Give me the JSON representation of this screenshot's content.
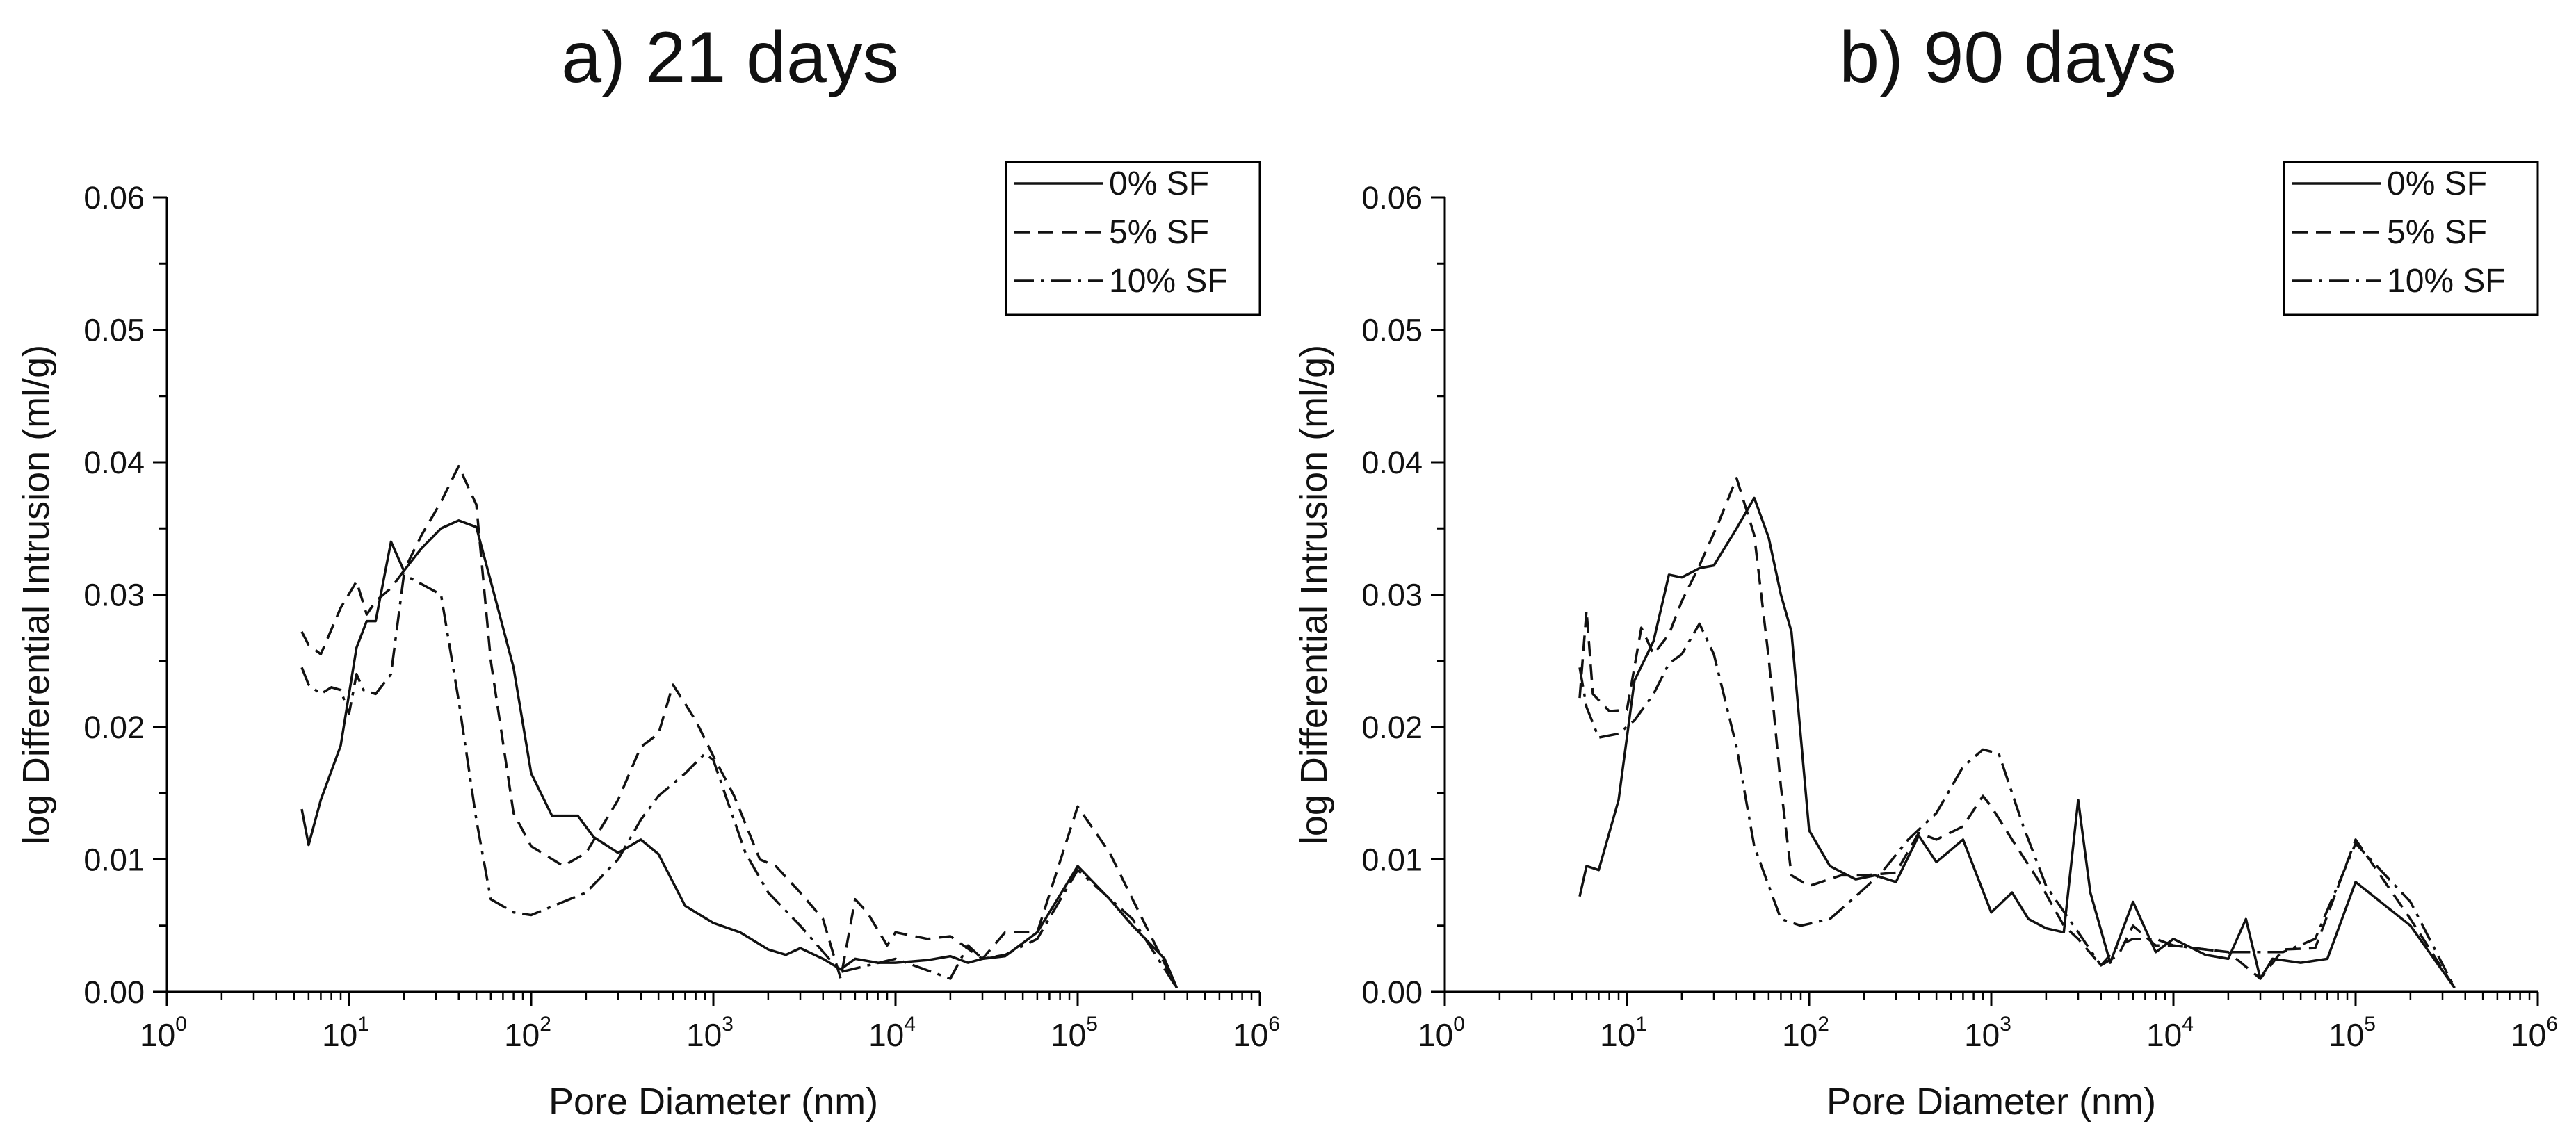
{
  "chart_data": [
    {
      "type": "line",
      "title": "a) 21 days",
      "xlabel": "Pore Diameter (nm)",
      "ylabel": "log Differential Intrusion (ml/g)",
      "xscale": "log",
      "xlim": [
        1,
        1000000
      ],
      "ylim": [
        0,
        0.06
      ],
      "x_ticks": [
        {
          "base": "10",
          "exp": "0"
        },
        {
          "base": "10",
          "exp": "1"
        },
        {
          "base": "10",
          "exp": "2"
        },
        {
          "base": "10",
          "exp": "3"
        },
        {
          "base": "10",
          "exp": "4"
        },
        {
          "base": "10",
          "exp": "5"
        },
        {
          "base": "10",
          "exp": "6"
        }
      ],
      "y_ticks": [
        "0.00",
        "0.01",
        "0.02",
        "0.03",
        "0.04",
        "0.05",
        "0.06"
      ],
      "legend_position": "top-right",
      "series": [
        {
          "name": "0% SF",
          "style": "solid",
          "x": [
            5.5,
            6,
            7,
            9,
            11,
            12.5,
            14,
            17,
            20,
            25,
            32,
            40,
            50,
            60,
            80,
            100,
            130,
            180,
            220,
            300,
            400,
            500,
            700,
            1000,
            1400,
            2000,
            2500,
            3000,
            4000,
            5000,
            6000,
            8000,
            10000,
            15000,
            20000,
            25000,
            30000,
            40000,
            60000,
            100000,
            150000,
            200000,
            300000,
            350000
          ],
          "y": [
            0.0138,
            0.0111,
            0.0145,
            0.0186,
            0.026,
            0.028,
            0.028,
            0.034,
            0.0318,
            0.0335,
            0.035,
            0.0356,
            0.0351,
            0.031,
            0.0245,
            0.0165,
            0.0133,
            0.0133,
            0.0117,
            0.0105,
            0.0115,
            0.0104,
            0.0065,
            0.0052,
            0.0045,
            0.0032,
            0.0028,
            0.0033,
            0.0025,
            0.0017,
            0.0025,
            0.0022,
            0.0022,
            0.0024,
            0.0027,
            0.0022,
            0.0025,
            0.0027,
            0.0045,
            0.0095,
            0.007,
            0.005,
            0.0025,
            0.0003
          ]
        },
        {
          "name": "5% SF",
          "style": "dash",
          "x": [
            5.5,
            6,
            7,
            9,
            11,
            12.5,
            14,
            17,
            20,
            25,
            32,
            40,
            50,
            60,
            80,
            100,
            150,
            200,
            300,
            400,
            500,
            600,
            800,
            1000,
            1300,
            1800,
            2200,
            3000,
            4000,
            5000,
            6000,
            7000,
            9000,
            10000,
            15000,
            20000,
            30000,
            40000,
            60000,
            100000,
            150000,
            200000,
            350000
          ],
          "y": [
            0.0272,
            0.0262,
            0.0255,
            0.029,
            0.031,
            0.0285,
            0.0295,
            0.0305,
            0.0318,
            0.0345,
            0.037,
            0.0397,
            0.0368,
            0.025,
            0.0135,
            0.011,
            0.0095,
            0.0105,
            0.0145,
            0.0185,
            0.0195,
            0.0232,
            0.0205,
            0.0178,
            0.0148,
            0.01,
            0.0095,
            0.0075,
            0.0055,
            0.001,
            0.007,
            0.006,
            0.0035,
            0.0045,
            0.004,
            0.0042,
            0.0025,
            0.0045,
            0.0045,
            0.014,
            0.0105,
            0.007,
            0.0003
          ]
        },
        {
          "name": "10% SF",
          "style": "dashdot",
          "x": [
            5.5,
            6,
            7,
            8,
            9,
            10,
            11,
            12,
            14,
            17,
            20,
            25,
            32,
            40,
            50,
            60,
            80,
            100,
            150,
            200,
            300,
            400,
            500,
            700,
            900,
            1000,
            1500,
            2000,
            3000,
            5000,
            10000,
            20000,
            25000,
            30000,
            40000,
            60000,
            100000,
            200000,
            350000
          ],
          "y": [
            0.0245,
            0.0232,
            0.0225,
            0.023,
            0.0228,
            0.021,
            0.024,
            0.0228,
            0.0225,
            0.024,
            0.0315,
            0.0308,
            0.03,
            0.022,
            0.013,
            0.007,
            0.006,
            0.0058,
            0.0068,
            0.0075,
            0.01,
            0.013,
            0.0148,
            0.0165,
            0.018,
            0.0175,
            0.0105,
            0.0075,
            0.005,
            0.0015,
            0.0025,
            0.001,
            0.0035,
            0.0025,
            0.0028,
            0.004,
            0.0092,
            0.0055,
            0.0003
          ]
        }
      ]
    },
    {
      "type": "line",
      "title": "b) 90 days",
      "xlabel": "Pore Diameter (nm)",
      "ylabel": "log Differential Intrusion (ml/g)",
      "xscale": "log",
      "xlim": [
        1,
        1000000
      ],
      "ylim": [
        0,
        0.06
      ],
      "x_ticks": [
        {
          "base": "10",
          "exp": "0"
        },
        {
          "base": "10",
          "exp": "1"
        },
        {
          "base": "10",
          "exp": "2"
        },
        {
          "base": "10",
          "exp": "3"
        },
        {
          "base": "10",
          "exp": "4"
        },
        {
          "base": "10",
          "exp": "5"
        },
        {
          "base": "10",
          "exp": "6"
        }
      ],
      "y_ticks": [
        "0.00",
        "0.01",
        "0.02",
        "0.03",
        "0.04",
        "0.05",
        "0.06"
      ],
      "legend_position": "top-right",
      "series": [
        {
          "name": "0% SF",
          "style": "solid",
          "x": [
            5.5,
            6,
            7,
            9,
            11,
            14,
            17,
            20,
            25,
            30,
            40,
            50,
            60,
            70,
            80,
            100,
            130,
            180,
            230,
            300,
            400,
            500,
            700,
            1000,
            1300,
            1600,
            2000,
            2500,
            3000,
            3500,
            4500,
            6000,
            8000,
            10000,
            15000,
            20000,
            25000,
            30000,
            35000,
            50000,
            70000,
            100000,
            200000,
            350000
          ],
          "y": [
            0.0072,
            0.0095,
            0.0092,
            0.0145,
            0.0235,
            0.0265,
            0.0315,
            0.0313,
            0.032,
            0.0322,
            0.035,
            0.0373,
            0.0343,
            0.03,
            0.0272,
            0.0122,
            0.0095,
            0.0085,
            0.0088,
            0.0083,
            0.0118,
            0.0098,
            0.0115,
            0.006,
            0.0075,
            0.0055,
            0.0048,
            0.0045,
            0.0145,
            0.0075,
            0.0022,
            0.0068,
            0.003,
            0.004,
            0.0028,
            0.0025,
            0.0055,
            0.001,
            0.0025,
            0.0022,
            0.0025,
            0.0083,
            0.005,
            0.0003
          ]
        },
        {
          "name": "5% SF",
          "style": "dash",
          "x": [
            5.5,
            6,
            6.5,
            8,
            10,
            12,
            14,
            17,
            20,
            25,
            32,
            40,
            50,
            60,
            70,
            80,
            100,
            150,
            200,
            300,
            400,
            500,
            700,
            900,
            1000,
            1300,
            1800,
            2500,
            3000,
            4000,
            5000,
            6000,
            8000,
            10000,
            15000,
            20000,
            30000,
            40000,
            60000,
            100000,
            150000,
            200000,
            350000
          ],
          "y": [
            0.0222,
            0.0288,
            0.0225,
            0.0212,
            0.0213,
            0.0275,
            0.0255,
            0.027,
            0.0295,
            0.0322,
            0.0355,
            0.0388,
            0.0345,
            0.0252,
            0.0155,
            0.0088,
            0.008,
            0.0088,
            0.0088,
            0.009,
            0.012,
            0.0115,
            0.0125,
            0.0148,
            0.014,
            0.0115,
            0.0085,
            0.005,
            0.004,
            0.002,
            0.0028,
            0.005,
            0.0035,
            0.0035,
            0.0032,
            0.003,
            0.001,
            0.0032,
            0.0033,
            0.0115,
            0.008,
            0.0055,
            0.0003
          ]
        },
        {
          "name": "10% SF",
          "style": "dashdot",
          "x": [
            5.5,
            6,
            7,
            9,
            11,
            14,
            17,
            20,
            25,
            30,
            40,
            50,
            70,
            90,
            130,
            180,
            250,
            350,
            500,
            700,
            900,
            1100,
            1500,
            2000,
            3000,
            4000,
            5000,
            6000,
            8000,
            10000,
            15000,
            20000,
            30000,
            40000,
            60000,
            100000,
            200000,
            350000
          ],
          "y": [
            0.0245,
            0.0215,
            0.0192,
            0.0195,
            0.0205,
            0.0225,
            0.0248,
            0.0255,
            0.0278,
            0.0255,
            0.0185,
            0.011,
            0.0055,
            0.005,
            0.0055,
            0.0072,
            0.009,
            0.0115,
            0.0135,
            0.017,
            0.0183,
            0.018,
            0.0125,
            0.008,
            0.0045,
            0.002,
            0.0035,
            0.004,
            0.004,
            0.0035,
            0.0032,
            0.003,
            0.003,
            0.003,
            0.004,
            0.0112,
            0.0068,
            0.0003
          ]
        }
      ]
    }
  ]
}
